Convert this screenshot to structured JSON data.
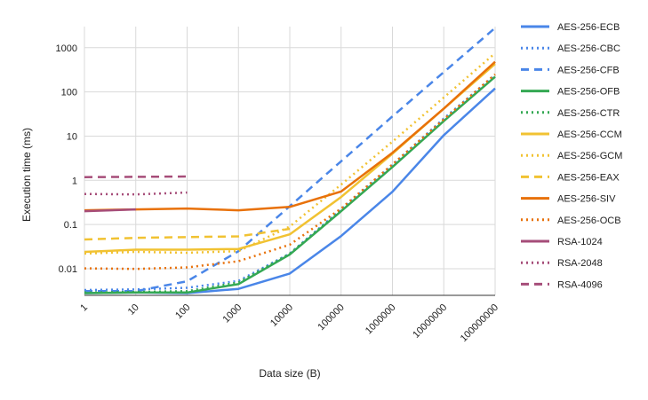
{
  "chart_data": {
    "type": "line",
    "title": "",
    "xlabel": "Data size (B)",
    "ylabel": "Execution time (ms)",
    "x_scale": "log",
    "y_scale": "log",
    "x_ticks": [
      "1",
      "10",
      "100",
      "1000",
      "10000",
      "100000",
      "1000000",
      "10000000",
      "100000000"
    ],
    "y_ticks": [
      "0.01",
      "0.1",
      "1",
      "10",
      "100",
      "1000"
    ],
    "xlim": [
      1,
      100000000
    ],
    "ylim": [
      0.0025,
      3000
    ],
    "grid": true,
    "legend_position": "right",
    "series": [
      {
        "name": "AES-256-ECB",
        "color": "#4a86e8",
        "dash": "solid",
        "x": [
          1,
          10,
          100,
          1000,
          10000,
          100000,
          1000000,
          10000000,
          100000000
        ],
        "y": [
          0.0028,
          0.0029,
          0.0028,
          0.0035,
          0.0078,
          0.055,
          0.55,
          10.5,
          120
        ]
      },
      {
        "name": "AES-256-CBC",
        "color": "#4a86e8",
        "dash": "dotted",
        "x": [
          1,
          10,
          100,
          1000,
          10000,
          100000,
          1000000,
          10000000,
          100000000
        ],
        "y": [
          0.0033,
          0.0034,
          0.0037,
          0.0053,
          0.022,
          0.22,
          2.2,
          25,
          240
        ]
      },
      {
        "name": "AES-256-CFB",
        "color": "#4a86e8",
        "dash": "dashed",
        "x": [
          1,
          10,
          100,
          1000,
          10000,
          100000,
          1000000,
          10000000,
          100000000
        ],
        "y": [
          0.0031,
          0.0031,
          0.0052,
          0.025,
          0.26,
          2.7,
          28,
          280,
          2800
        ]
      },
      {
        "name": "AES-256-OFB",
        "color": "#34a853",
        "dash": "solid",
        "x": [
          1,
          10,
          100,
          1000,
          10000,
          100000,
          1000000,
          10000000,
          100000000
        ],
        "y": [
          0.0028,
          0.0029,
          0.0029,
          0.0045,
          0.021,
          0.2,
          2.0,
          22,
          220
        ]
      },
      {
        "name": "AES-256-CTR",
        "color": "#34a853",
        "dash": "dotted",
        "x": [
          1,
          10,
          100,
          1000,
          10000,
          100000,
          1000000,
          10000000,
          100000000
        ],
        "y": [
          0.0029,
          0.003,
          0.0031,
          0.0049,
          0.022,
          0.21,
          2.1,
          23,
          230
        ]
      },
      {
        "name": "AES-256-CCM",
        "color": "#f1c232",
        "dash": "solid",
        "x": [
          1,
          10,
          100,
          1000,
          10000,
          100000,
          1000000,
          10000000,
          100000000
        ],
        "y": [
          0.024,
          0.027,
          0.027,
          0.028,
          0.06,
          0.42,
          4.0,
          42,
          430
        ]
      },
      {
        "name": "AES-256-GCM",
        "color": "#f1c232",
        "dash": "dotted",
        "x": [
          1,
          10,
          100,
          1000,
          10000,
          100000,
          1000000,
          10000000,
          100000000
        ],
        "y": [
          0.022,
          0.024,
          0.023,
          0.025,
          0.09,
          0.8,
          7.5,
          75,
          750
        ]
      },
      {
        "name": "AES-256-EAX",
        "color": "#f1c232",
        "dash": "dashed",
        "x": [
          1,
          10,
          100,
          1000,
          10000
        ],
        "y": [
          0.046,
          0.05,
          0.052,
          0.054,
          0.08
        ]
      },
      {
        "name": "AES-256-SIV",
        "color": "#e8710a",
        "dash": "solid",
        "x": [
          1,
          10,
          100,
          1000,
          10000,
          100000,
          1000000,
          10000000,
          100000000
        ],
        "y": [
          0.21,
          0.22,
          0.23,
          0.21,
          0.25,
          0.56,
          4.2,
          42,
          480
        ]
      },
      {
        "name": "AES-256-OCB",
        "color": "#e8710a",
        "dash": "dotted",
        "x": [
          1,
          10,
          100,
          1000,
          10000,
          100000,
          1000000,
          10000000,
          100000000
        ],
        "y": [
          0.0102,
          0.0099,
          0.0107,
          0.0148,
          0.035,
          0.23,
          2.3,
          24,
          250
        ]
      },
      {
        "name": "RSA-1024",
        "color": "#a64d79",
        "dash": "solid",
        "x": [
          1,
          10
        ],
        "y": [
          0.2,
          0.22
        ]
      },
      {
        "name": "RSA-2048",
        "color": "#a64d79",
        "dash": "dotted",
        "x": [
          1,
          10,
          100
        ],
        "y": [
          0.49,
          0.48,
          0.53
        ]
      },
      {
        "name": "RSA-4096",
        "color": "#a64d79",
        "dash": "dashed",
        "x": [
          1,
          10,
          100
        ],
        "y": [
          1.18,
          1.2,
          1.22
        ]
      }
    ]
  }
}
